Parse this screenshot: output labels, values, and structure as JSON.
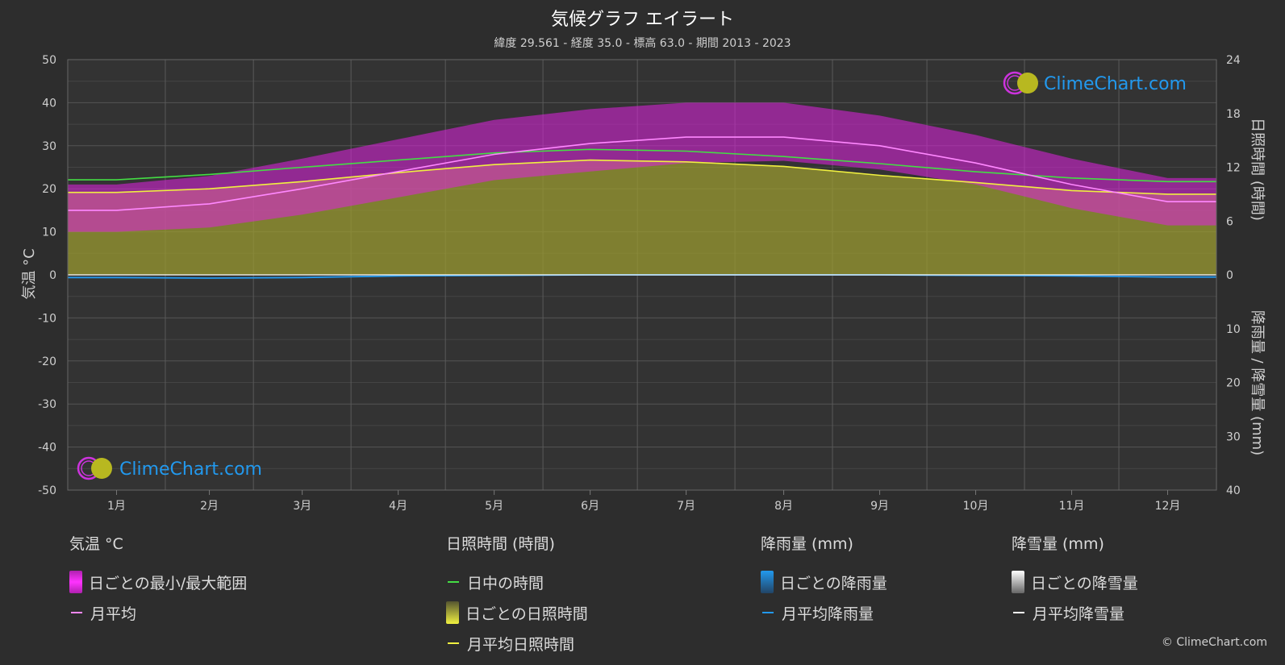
{
  "header": {
    "title": "気候グラフ エイラート",
    "subtitle": "緯度 29.561 - 経度 35.0 - 標高 63.0 - 期間 2013 - 2023"
  },
  "axes": {
    "left_label": "気温 °C",
    "right_top_label": "日照時間 (時間)",
    "right_bottom_label": "降雨量 / 降雪量 (mm)"
  },
  "logo": {
    "text": "ClimeChart.com"
  },
  "copyright": "© ClimeChart.com",
  "colors": {
    "background": "#2d2d2d",
    "temp_range": "#e020e0",
    "temp_avg": "#ff88ff",
    "daylight": "#44dd44",
    "sunshine_fill": "#9a9a30",
    "sunshine_avg": "#f0f040",
    "rain": "#2299ee",
    "snow": "#ffffff",
    "logo_text": "#2299ee"
  },
  "legend": {
    "temperature": {
      "heading": "気温 °C",
      "items": [
        {
          "label": "日ごとの最小/最大範囲",
          "icon": "bar-swatch"
        },
        {
          "label": "月平均",
          "icon": "line-swatch"
        }
      ]
    },
    "sunshine": {
      "heading": "日照時間 (時間)",
      "items": [
        {
          "label": "日中の時間",
          "icon": "line-swatch"
        },
        {
          "label": "日ごとの日照時間",
          "icon": "bar-swatch"
        },
        {
          "label": "月平均日照時間",
          "icon": "line-swatch"
        }
      ]
    },
    "rain": {
      "heading": "降雨量 (mm)",
      "items": [
        {
          "label": "日ごとの降雨量",
          "icon": "bar-swatch"
        },
        {
          "label": "月平均降雨量",
          "icon": "line-swatch"
        }
      ]
    },
    "snow": {
      "heading": "降雪量 (mm)",
      "items": [
        {
          "label": "日ごとの降雪量",
          "icon": "bar-swatch"
        },
        {
          "label": "月平均降雪量",
          "icon": "line-swatch"
        }
      ]
    }
  },
  "chart_data": {
    "type": "line",
    "categories": [
      "1月",
      "2月",
      "3月",
      "4月",
      "5月",
      "6月",
      "7月",
      "8月",
      "9月",
      "10月",
      "11月",
      "12月"
    ],
    "y_left": {
      "label": "気温 °C",
      "range": [
        -50,
        50
      ],
      "ticks": [
        50,
        40,
        30,
        20,
        10,
        0,
        -10,
        -20,
        -30,
        -40,
        -50
      ]
    },
    "y_right_top": {
      "label": "日照時間 (時間)",
      "range": [
        0,
        24
      ],
      "ticks": [
        24,
        18,
        12,
        6,
        0
      ]
    },
    "y_right_bottom": {
      "label": "降雨量 / 降雪量 (mm)",
      "range": [
        0,
        40
      ],
      "ticks": [
        0,
        10,
        20,
        30,
        40
      ]
    },
    "grid": true,
    "series": [
      {
        "name": "月平均",
        "axis": "left",
        "values": [
          15,
          16.5,
          20,
          24,
          28,
          30.5,
          32,
          32,
          30,
          26,
          21,
          17
        ]
      },
      {
        "name": "日ごとの最小/最大範囲 (最小)",
        "axis": "left",
        "values": [
          10,
          11,
          14,
          18,
          22,
          24,
          26,
          26.5,
          24.5,
          21,
          15.5,
          11.5
        ]
      },
      {
        "name": "日ごとの最小/最大範囲 (最大)",
        "axis": "left",
        "values": [
          21,
          23,
          27,
          31.5,
          36,
          38.5,
          40,
          40,
          37,
          32.5,
          27,
          22.5
        ]
      },
      {
        "name": "日中の時間",
        "axis": "right_top",
        "values": [
          10.6,
          11.2,
          12.0,
          12.8,
          13.6,
          14.0,
          13.8,
          13.2,
          12.4,
          11.5,
          10.8,
          10.4
        ]
      },
      {
        "name": "月平均日照時間",
        "axis": "right_top",
        "values": [
          9.2,
          9.6,
          10.4,
          11.4,
          12.3,
          12.8,
          12.6,
          12.1,
          11.1,
          10.3,
          9.4,
          9.0
        ]
      },
      {
        "name": "月平均降雨量",
        "axis": "right_bottom",
        "values": [
          0.5,
          0.6,
          0.5,
          0.2,
          0.1,
          0,
          0,
          0,
          0,
          0.1,
          0.2,
          0.4
        ]
      },
      {
        "name": "月平均降雪量",
        "axis": "right_bottom",
        "values": [
          0,
          0,
          0,
          0,
          0,
          0,
          0,
          0,
          0,
          0,
          0,
          0
        ]
      }
    ]
  }
}
